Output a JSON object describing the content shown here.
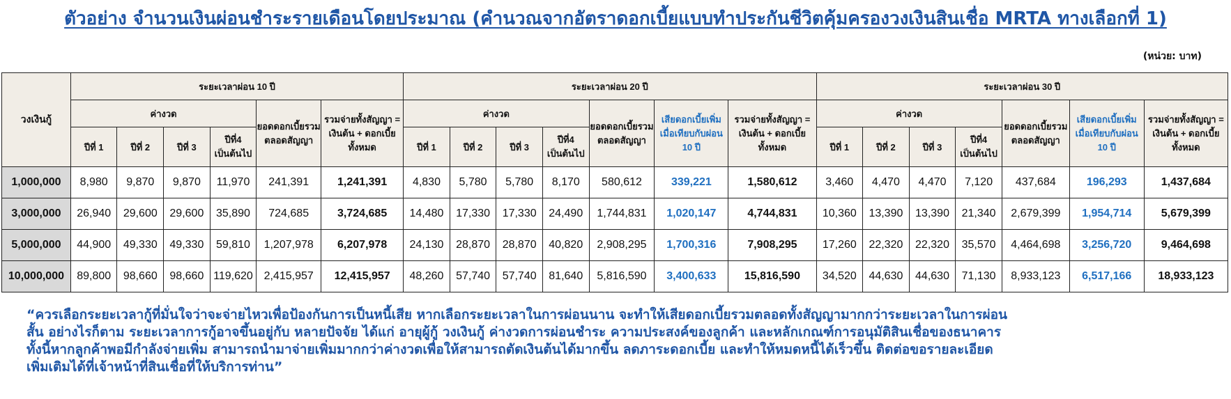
{
  "title": "ตัวอย่าง จำนวนเงินผ่อนชำระรายเดือนโดยประมาณ (คำนวณจากอัตราดอกเบี้ยแบบทำประกันชีวิตคุ้มครองวงเงินสินเชื่อ MRTA ทางเลือกที่ 1)",
  "unit": "(หน่วย: บาท)",
  "table": {
    "corner": "วงเงินกู้",
    "periods": [
      "ระยะเวลาผ่อน 10 ปี",
      "ระยะเวลาผ่อน 20 ปี",
      "ระยะเวลาผ่อน 30 ปี"
    ],
    "installment": "ค่างวด",
    "interest_total": "ยอดดอกเบี้ยรวมตลอดสัญญา",
    "extra_interest": "เสียดอกเบี้ยเพิ่มเมื่อเทียบกับผ่อน 10 ปี",
    "grand_total_10": "รวมจ่ายทั้งสัญญา = เงินต้น + ดอกเบี้ยทั้งหมด",
    "grand_total_20": "รวมจ่ายทั้งสัญญา = เงินต้น + ดอกเบี้ยทั้งหมด",
    "grand_total_30": "รวมจ่ายทั้งสัญญา = เงินต้น + ดอกเบี้ยทั้งหมด",
    "years": [
      "ปีที่ 1",
      "ปีที่ 2",
      "ปีที่ 3",
      "ปีที่4 เป็นต้นไป"
    ],
    "rows": [
      {
        "amount": "1,000,000",
        "p10": [
          "8,980",
          "9,870",
          "9,870",
          "11,970",
          "241,391",
          "1,241,391"
        ],
        "p20": [
          "4,830",
          "5,780",
          "5,780",
          "8,170",
          "580,612",
          "339,221",
          "1,580,612"
        ],
        "p30": [
          "3,460",
          "4,470",
          "4,470",
          "7,120",
          "437,684",
          "196,293",
          "1,437,684"
        ]
      },
      {
        "amount": "3,000,000",
        "p10": [
          "26,940",
          "29,600",
          "29,600",
          "35,890",
          "724,685",
          "3,724,685"
        ],
        "p20": [
          "14,480",
          "17,330",
          "17,330",
          "24,490",
          "1,744,831",
          "1,020,147",
          "4,744,831"
        ],
        "p30": [
          "10,360",
          "13,390",
          "13,390",
          "21,340",
          "2,679,399",
          "1,954,714",
          "5,679,399"
        ]
      },
      {
        "amount": "5,000,000",
        "p10": [
          "44,900",
          "49,330",
          "49,330",
          "59,810",
          "1,207,978",
          "6,207,978"
        ],
        "p20": [
          "24,130",
          "28,870",
          "28,870",
          "40,820",
          "2,908,295",
          "1,700,316",
          "7,908,295"
        ],
        "p30": [
          "17,260",
          "22,320",
          "22,320",
          "35,570",
          "4,464,698",
          "3,256,720",
          "9,464,698"
        ]
      },
      {
        "amount": "10,000,000",
        "p10": [
          "89,800",
          "98,660",
          "98,660",
          "119,620",
          "2,415,957",
          "12,415,957"
        ],
        "p20": [
          "48,260",
          "57,740",
          "57,740",
          "81,640",
          "5,816,590",
          "3,400,633",
          "15,816,590"
        ],
        "p30": [
          "34,520",
          "44,630",
          "44,630",
          "71,130",
          "8,933,123",
          "6,517,166",
          "18,933,123"
        ]
      }
    ]
  },
  "note_lines": [
    "“ควรเลือกระยะเวลากู้ที่มั่นใจว่าจะจ่ายไหวเพื่อป้องกันการเป็นหนี้เสีย หากเลือกระยะเวลาในการผ่อนนาน จะทำให้เสียดอกเบี้ยรวมตลอดทั้งสัญญามากกว่าระยะเวลาในการผ่อน",
    "สั้น อย่างไรก็ตาม ระยะเวลาการกู้อาจขึ้นอยู่กับ หลายปัจจัย ได้แก่ อายุผู้กู้ วงเงินกู้ ค่างวดการผ่อนชำระ ความประสงค์ของลูกค้า และหลักเกณฑ์การอนุมัติสินเชื่อของธนาคาร",
    "ทั้งนี้หากลูกค้าพอมีกำลังจ่ายเพิ่ม สามารถนำมาจ่ายเพิ่มมากกว่าค่างวดเพื่อให้สามารถตัดเงินต้นได้มากขึ้น ลดภาระดอกเบี้ย และทำให้หมดหนี้ได้เร็วขึ้น ติดต่อขอรายละเอียด",
    "เพิ่มเติมได้ที่เจ้าหน้าที่สินเชื่อที่ให้บริการท่าน”"
  ]
}
